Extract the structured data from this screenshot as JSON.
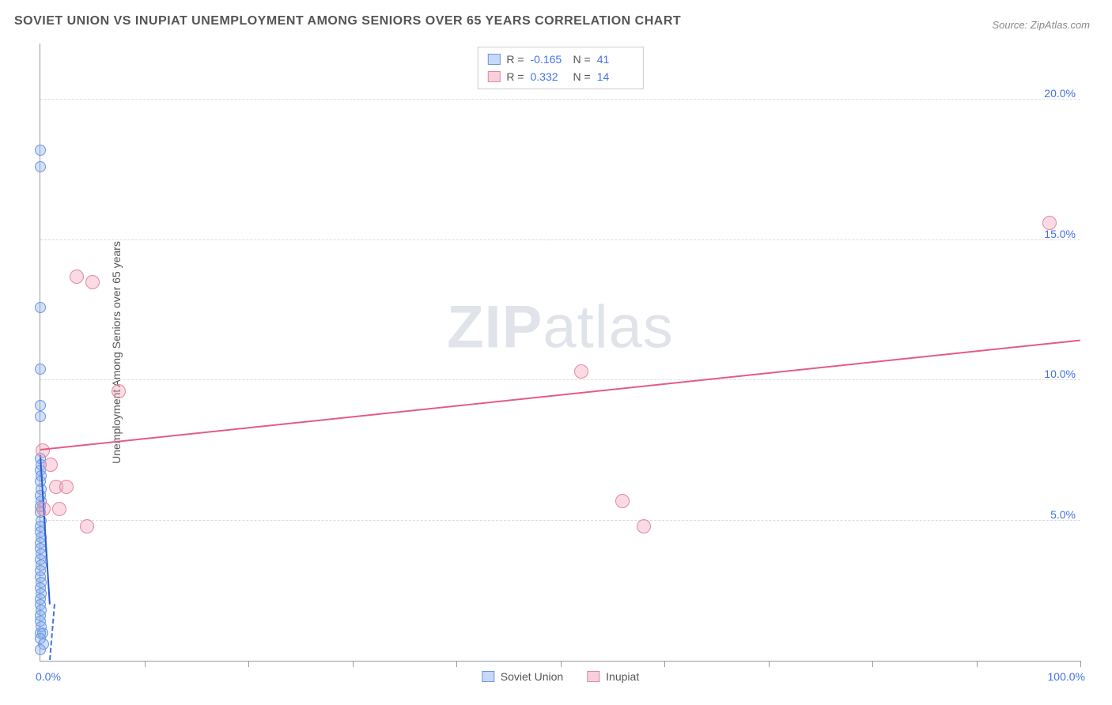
{
  "title": "SOVIET UNION VS INUPIAT UNEMPLOYMENT AMONG SENIORS OVER 65 YEARS CORRELATION CHART",
  "source": "Source: ZipAtlas.com",
  "ylabel": "Unemployment Among Seniors over 65 years",
  "watermark_bold": "ZIP",
  "watermark_light": "atlas",
  "chart": {
    "type": "scatter",
    "background_color": "#ffffff",
    "grid_color": "#dddddd",
    "axis_color": "#999999",
    "tick_label_color": "#4472e4",
    "tick_fontsize": 14,
    "title_fontsize": 16,
    "label_fontsize": 14,
    "xlim": [
      0,
      100
    ],
    "ylim": [
      0,
      22
    ],
    "y_ticks": [
      5.0,
      10.0,
      15.0,
      20.0
    ],
    "y_tick_labels": [
      "5.0%",
      "10.0%",
      "15.0%",
      "20.0%"
    ],
    "x_minor_ticks": [
      10,
      20,
      30,
      40,
      50,
      60,
      70,
      80,
      90,
      100
    ],
    "x_tick_labels": {
      "min": "0.0%",
      "max": "100.0%"
    },
    "marker_radius": 7,
    "marker_radius_large": 9,
    "series": [
      {
        "name": "Soviet Union",
        "color_fill": "rgba(130,170,240,0.35)",
        "color_stroke": "#6b97e0",
        "trend_color": "#2a5ad0",
        "trend_dashed_extension": true,
        "R": "-0.165",
        "N": "41",
        "trend": {
          "x1": 0.0,
          "y1": 7.3,
          "x2": 0.9,
          "y2": 2.0
        },
        "points": [
          {
            "x": 0.0,
            "y": 18.2
          },
          {
            "x": 0.0,
            "y": 17.6
          },
          {
            "x": 0.0,
            "y": 12.6
          },
          {
            "x": 0.0,
            "y": 10.4
          },
          {
            "x": 0.0,
            "y": 9.1
          },
          {
            "x": 0.0,
            "y": 8.7
          },
          {
            "x": 0.0,
            "y": 7.2
          },
          {
            "x": 0.05,
            "y": 7.0
          },
          {
            "x": 0.0,
            "y": 6.8
          },
          {
            "x": 0.1,
            "y": 6.6
          },
          {
            "x": 0.0,
            "y": 6.4
          },
          {
            "x": 0.1,
            "y": 6.1
          },
          {
            "x": 0.0,
            "y": 5.9
          },
          {
            "x": 0.05,
            "y": 5.7
          },
          {
            "x": 0.0,
            "y": 5.5
          },
          {
            "x": 0.0,
            "y": 5.3
          },
          {
            "x": 0.1,
            "y": 5.0
          },
          {
            "x": 0.0,
            "y": 4.8
          },
          {
            "x": 0.0,
            "y": 4.6
          },
          {
            "x": 0.1,
            "y": 4.4
          },
          {
            "x": 0.0,
            "y": 4.2
          },
          {
            "x": 0.0,
            "y": 4.0
          },
          {
            "x": 0.05,
            "y": 3.8
          },
          {
            "x": 0.0,
            "y": 3.6
          },
          {
            "x": 0.1,
            "y": 3.4
          },
          {
            "x": 0.0,
            "y": 3.2
          },
          {
            "x": 0.0,
            "y": 3.0
          },
          {
            "x": 0.05,
            "y": 2.8
          },
          {
            "x": 0.0,
            "y": 2.6
          },
          {
            "x": 0.1,
            "y": 2.4
          },
          {
            "x": 0.0,
            "y": 2.2
          },
          {
            "x": 0.0,
            "y": 2.0
          },
          {
            "x": 0.05,
            "y": 1.8
          },
          {
            "x": 0.0,
            "y": 1.6
          },
          {
            "x": 0.0,
            "y": 1.4
          },
          {
            "x": 0.1,
            "y": 1.2
          },
          {
            "x": 0.2,
            "y": 1.0
          },
          {
            "x": 0.0,
            "y": 1.0
          },
          {
            "x": 0.0,
            "y": 0.8
          },
          {
            "x": 0.3,
            "y": 0.6
          },
          {
            "x": 0.0,
            "y": 0.4
          }
        ]
      },
      {
        "name": "Inupiat",
        "color_fill": "rgba(240,150,175,0.35)",
        "color_stroke": "#e089a4",
        "trend_color": "#e35b87",
        "R": "0.332",
        "N": "14",
        "trend": {
          "x1": 0.0,
          "y1": 7.5,
          "x2": 100.0,
          "y2": 11.4
        },
        "points": [
          {
            "x": 3.5,
            "y": 13.7
          },
          {
            "x": 5.0,
            "y": 13.5
          },
          {
            "x": 7.5,
            "y": 9.6
          },
          {
            "x": 0.2,
            "y": 7.5
          },
          {
            "x": 1.0,
            "y": 7.0
          },
          {
            "x": 1.5,
            "y": 6.2
          },
          {
            "x": 2.5,
            "y": 6.2
          },
          {
            "x": 0.3,
            "y": 5.4
          },
          {
            "x": 1.8,
            "y": 5.4
          },
          {
            "x": 4.5,
            "y": 4.8
          },
          {
            "x": 56.0,
            "y": 5.7
          },
          {
            "x": 58.0,
            "y": 4.8
          },
          {
            "x": 52.0,
            "y": 10.3
          },
          {
            "x": 97.0,
            "y": 15.6
          }
        ]
      }
    ],
    "legend": {
      "series1_label": "Soviet Union",
      "series2_label": "Inupiat",
      "r_label": "R =",
      "n_label": "N ="
    }
  }
}
